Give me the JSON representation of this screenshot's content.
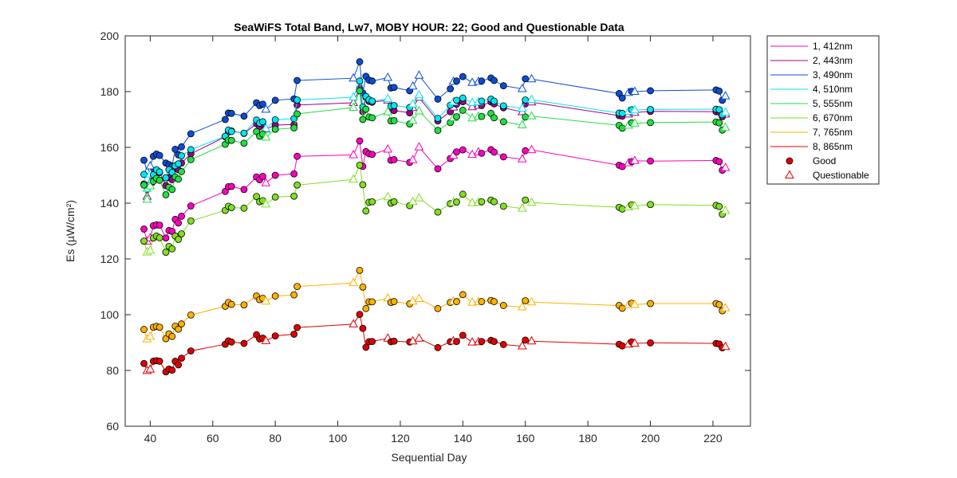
{
  "chart_data": {
    "type": "line",
    "title": "SeaWiFS Total Band,  Lw7, MOBY HOUR: 22;  Good and Questionable Data",
    "xlabel": "Sequential Day",
    "ylabel": "Es (µW/cm²)",
    "xlim": [
      32,
      232
    ],
    "ylim": [
      60,
      200
    ],
    "xticks": [
      40,
      60,
      80,
      100,
      120,
      140,
      160,
      180,
      200,
      220
    ],
    "yticks": [
      60,
      80,
      100,
      120,
      140,
      160,
      180,
      200
    ],
    "legend_position": "outside-top-right",
    "marker_legend": [
      {
        "label": "Good",
        "marker": "circle"
      },
      {
        "label": "Questionable",
        "marker": "triangle"
      }
    ],
    "x": [
      38,
      39,
      40,
      41,
      42,
      43,
      45,
      46,
      47,
      48,
      49,
      50,
      53,
      64,
      65,
      66,
      70,
      74,
      75,
      76,
      77,
      80,
      86,
      87,
      105,
      107,
      108,
      109,
      110,
      111,
      116,
      117,
      118,
      123,
      124,
      126,
      132,
      136,
      137,
      138,
      140,
      143,
      145,
      146,
      149,
      150,
      153,
      159,
      160,
      162,
      190,
      191,
      193,
      194,
      195,
      200,
      221,
      222,
      223,
      224
    ],
    "flags": [
      "G",
      "Q",
      "Q",
      "G",
      "G",
      "G",
      "G",
      "G",
      "G",
      "G",
      "G",
      "G",
      "G",
      "G",
      "G",
      "G",
      "G",
      "G",
      "G",
      "G",
      "Q",
      "G",
      "G",
      "G",
      "Q",
      "G",
      "G",
      "G",
      "G",
      "G",
      "Q",
      "G",
      "G",
      "G",
      "Q",
      "Q",
      "G",
      "G",
      "Q",
      "G",
      "G",
      "Q",
      "Q",
      "G",
      "G",
      "G",
      "G",
      "Q",
      "G",
      "Q",
      "G",
      "G",
      "Q",
      "G",
      "Q",
      "G",
      "G",
      "G",
      "G",
      "Q"
    ],
    "series": [
      {
        "name": "1, 412nm",
        "color": "#ff00c0",
        "values": [
          130.7,
          126.3,
          127.5,
          131.9,
          132.2,
          132.1,
          127.5,
          130.2,
          129.9,
          134.2,
          132.9,
          135.3,
          139.0,
          144.2,
          145.9,
          146.0,
          144.9,
          149.4,
          148.4,
          149.6,
          147.2,
          150.0,
          150.5,
          156.8,
          157.3,
          162.3,
          153.2,
          158.5,
          157.7,
          157.5,
          159.3,
          155.4,
          155.6,
          154.6,
          155.5,
          160.1,
          152.3,
          156.0,
          157.1,
          158.4,
          159.1,
          157.4,
          158.3,
          157.9,
          159.2,
          158.3,
          156.6,
          155.8,
          158.8,
          159.1,
          153.6,
          153.1,
          154.4,
          154.9,
          155.2,
          155.1,
          155.3,
          154.9,
          151.8,
          152.7
        ]
      },
      {
        "name": "2, 443nm",
        "color": "#a0008c",
        "values": [
          146.9,
          142.4,
          147.4,
          151.2,
          150.8,
          151.0,
          146.3,
          149.2,
          148.4,
          152.4,
          152.0,
          154.4,
          157.7,
          163.8,
          165.5,
          165.9,
          165.0,
          168.5,
          167.4,
          168.3,
          166.5,
          168.0,
          168.2,
          175.2,
          176.0,
          181.2,
          172.8,
          177.9,
          176.5,
          176.2,
          176.9,
          173.5,
          173.2,
          172.4,
          174.2,
          177.9,
          169.5,
          172.8,
          174.4,
          175.5,
          176.4,
          174.5,
          175.0,
          175.0,
          176.3,
          175.6,
          174.2,
          172.7,
          175.6,
          176.2,
          171.4,
          171.2,
          171.9,
          172.6,
          172.5,
          172.9,
          172.8,
          172.6,
          171.0,
          171.9
        ]
      },
      {
        "name": "3, 490nm",
        "color": "#0a4ed8",
        "values": [
          155.4,
          151.2,
          153.3,
          156.8,
          157.6,
          157.1,
          154.4,
          153.8,
          153.3,
          159.3,
          157.3,
          160.2,
          164.9,
          170.0,
          172.3,
          172.2,
          171.2,
          176.0,
          175.0,
          175.5,
          173.6,
          176.9,
          177.4,
          184.0,
          184.8,
          190.7,
          179.5,
          185.5,
          184.1,
          183.8,
          185.0,
          181.3,
          181.5,
          180.3,
          181.9,
          185.8,
          177.3,
          181.0,
          183.6,
          183.8,
          185.4,
          183.2,
          183.6,
          183.8,
          184.9,
          184.0,
          182.1,
          181.0,
          184.6,
          184.5,
          179.3,
          177.7,
          179.6,
          180.1,
          180.0,
          180.3,
          180.6,
          180.2,
          176.9,
          178.4
        ]
      },
      {
        "name": "4, 510nm",
        "color": "#00e6f0",
        "values": [
          150.3,
          145.2,
          150.4,
          150.2,
          152.0,
          151.2,
          149.1,
          152.0,
          151.0,
          153.4,
          154.1,
          157.0,
          159.2,
          164.0,
          166.2,
          165.7,
          165.1,
          169.8,
          168.7,
          169.2,
          166.7,
          169.9,
          170.3,
          177.0,
          178.0,
          183.8,
          174.5,
          178.3,
          177.1,
          176.6,
          177.4,
          174.8,
          175.0,
          174.3,
          175.5,
          178.8,
          170.4,
          175.1,
          176.3,
          176.9,
          177.7,
          176.0,
          176.3,
          176.6,
          177.3,
          176.6,
          174.9,
          174.0,
          177.0,
          177.1,
          172.3,
          172.2,
          172.9,
          173.5,
          173.4,
          173.6,
          173.7,
          173.5,
          171.7,
          172.6
        ]
      },
      {
        "name": "5, 555nm",
        "color": "#20e040",
        "values": [
          146.5,
          141.3,
          146.1,
          147.8,
          148.9,
          148.2,
          143.0,
          145.7,
          144.9,
          149.4,
          148.6,
          151.3,
          155.6,
          161.1,
          162.6,
          162.5,
          161.5,
          165.7,
          164.0,
          164.8,
          163.6,
          166.5,
          167.0,
          172.0,
          174.3,
          180.3,
          170.0,
          173.7,
          170.9,
          170.6,
          172.7,
          169.5,
          169.6,
          168.4,
          169.6,
          173.0,
          166.1,
          168.9,
          170.6,
          171.0,
          173.3,
          170.5,
          171.1,
          171.1,
          172.2,
          170.6,
          169.2,
          168.0,
          170.9,
          171.2,
          167.9,
          166.9,
          167.9,
          168.8,
          168.6,
          168.9,
          169.1,
          168.8,
          166.2,
          167.1
        ]
      },
      {
        "name": "6, 670nm",
        "color": "#80e020",
        "values": [
          126.4,
          122.4,
          123.0,
          127.5,
          128.2,
          127.6,
          122.4,
          124.5,
          123.6,
          128.2,
          127.0,
          129.0,
          133.6,
          137.4,
          138.9,
          138.4,
          138.2,
          142.4,
          140.5,
          140.9,
          139.6,
          142.2,
          142.5,
          146.5,
          148.5,
          153.6,
          146.6,
          137.2,
          140.3,
          140.5,
          142.2,
          140.0,
          140.5,
          139.1,
          140.5,
          141.8,
          136.8,
          139.8,
          140.3,
          140.4,
          143.2,
          140.1,
          140.3,
          140.5,
          141.1,
          140.5,
          138.9,
          138.1,
          141.1,
          140.2,
          138.5,
          137.9,
          138.6,
          139.4,
          139.0,
          139.5,
          139.2,
          138.8,
          136.0,
          137.3
        ]
      },
      {
        "name": "7, 765nm",
        "color": "#ffb000",
        "values": [
          94.7,
          91.2,
          92.2,
          95.5,
          95.8,
          95.5,
          91.4,
          93.1,
          92.2,
          95.9,
          94.8,
          96.7,
          99.9,
          103.0,
          104.4,
          103.7,
          103.5,
          106.7,
          105.4,
          105.9,
          104.8,
          106.7,
          107.1,
          110.1,
          111.4,
          115.9,
          109.9,
          102.2,
          104.6,
          104.6,
          105.9,
          104.4,
          104.7,
          103.9,
          104.8,
          105.7,
          102.2,
          104.4,
          104.8,
          104.7,
          107.2,
          104.4,
          104.6,
          104.7,
          105.1,
          104.7,
          103.3,
          102.7,
          105.0,
          104.5,
          103.3,
          102.3,
          103.5,
          104.1,
          103.6,
          104.0,
          104.0,
          103.6,
          101.4,
          102.4
        ]
      },
      {
        "name": "8, 865nm",
        "color": "#e00000",
        "values": [
          82.5,
          79.9,
          80.4,
          83.3,
          83.5,
          83.3,
          79.5,
          80.5,
          80.1,
          83.3,
          82.0,
          84.4,
          87.0,
          89.4,
          90.6,
          90.2,
          89.7,
          92.8,
          91.3,
          91.6,
          90.6,
          92.4,
          93.0,
          95.4,
          96.6,
          100.1,
          95.1,
          88.3,
          90.3,
          90.4,
          91.5,
          90.3,
          90.5,
          90.2,
          90.5,
          91.5,
          88.2,
          90.3,
          90.5,
          90.4,
          92.6,
          90.1,
          90.2,
          90.4,
          90.8,
          90.4,
          89.3,
          88.7,
          90.9,
          90.5,
          89.4,
          88.8,
          89.4,
          90.2,
          89.7,
          89.9,
          89.7,
          89.5,
          88.1,
          88.5
        ]
      }
    ]
  }
}
